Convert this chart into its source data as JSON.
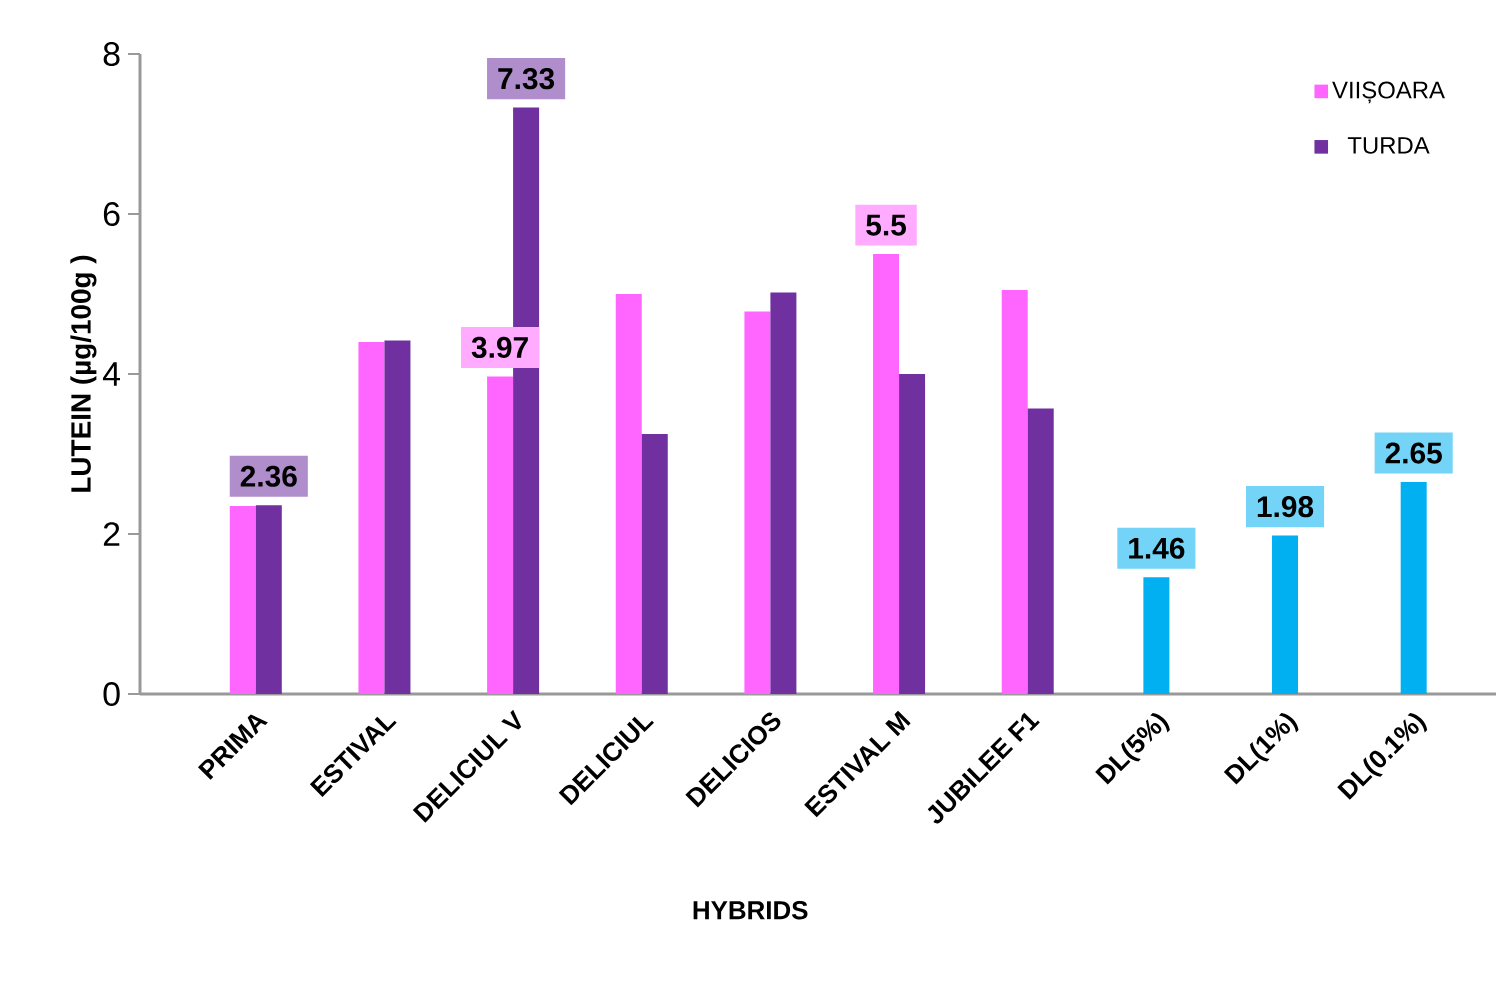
{
  "chart_data": {
    "type": "bar",
    "xlabel": "HYBRIDS",
    "ylabel": "LUTEIN (µg/100g )",
    "categories": [
      "PRIMA",
      "ESTIVAL",
      "DELICIUL V",
      "DELICIUL",
      "DELICIOS",
      "ESTIVAL M",
      "JUBILEE F1",
      "DL(5%)",
      "DL(1%)",
      "DL(0.1%)"
    ],
    "series": [
      {
        "name": "VIIȘOARA",
        "color": "#ff66ff",
        "values": [
          2.35,
          4.4,
          3.97,
          5.0,
          4.78,
          5.5,
          5.05,
          null,
          null,
          null
        ],
        "value_labels": [
          null,
          null,
          "3.97",
          null,
          null,
          "5.5",
          null,
          null,
          null,
          null
        ]
      },
      {
        "name": "TURDA",
        "color": "#7030a0",
        "values": [
          2.36,
          4.42,
          7.33,
          3.25,
          5.02,
          4.0,
          3.57,
          null,
          null,
          null
        ],
        "value_labels": [
          "2.36",
          null,
          "7.33",
          null,
          null,
          null,
          null,
          null,
          null,
          null
        ]
      },
      {
        "color": "#00b0f0",
        "values": [
          null,
          null,
          null,
          null,
          null,
          null,
          null,
          1.46,
          1.98,
          2.65
        ],
        "value_labels": [
          null,
          null,
          null,
          null,
          null,
          null,
          null,
          "1.46",
          "1.98",
          "2.65"
        ]
      }
    ],
    "ylim": [
      0,
      8
    ],
    "yticks": [
      0,
      2,
      4,
      6,
      8
    ],
    "grid": false,
    "legend": "top right"
  }
}
